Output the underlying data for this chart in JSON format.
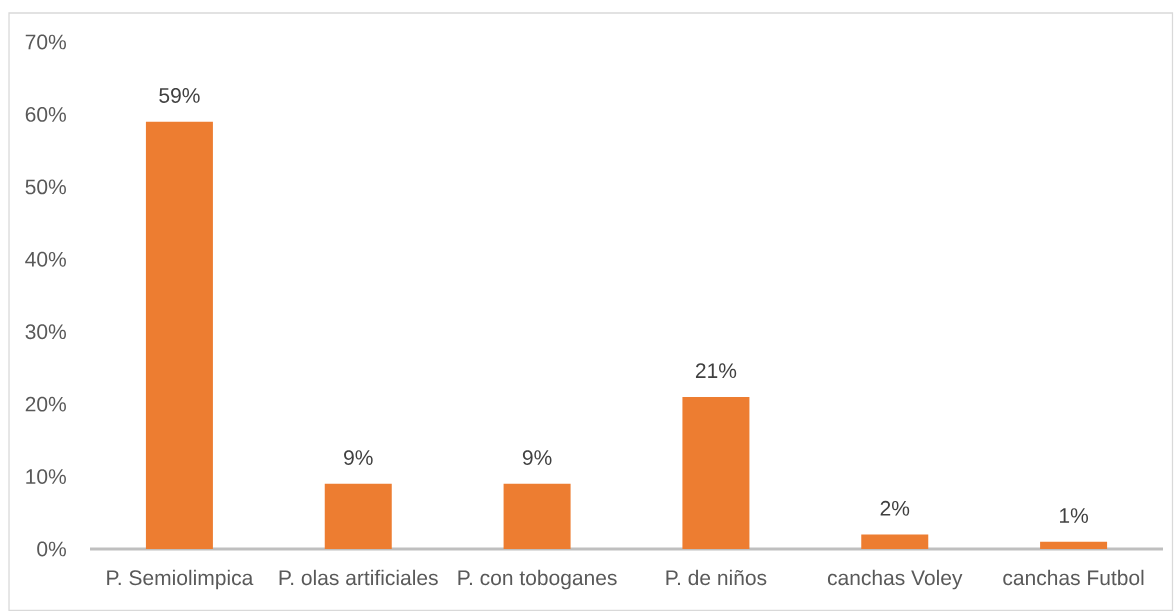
{
  "chart_data": {
    "type": "bar",
    "categories": [
      "P. Semiolimpica",
      "P. olas artificiales",
      "P. con toboganes",
      "P. de niños",
      "canchas Voley",
      "canchas Futbol"
    ],
    "values": [
      59,
      9,
      9,
      21,
      2,
      1
    ],
    "value_labels": [
      "59%",
      "9%",
      "9%",
      "21%",
      "2%",
      "1%"
    ],
    "color": "#ed7d31",
    "ylim": [
      0,
      70
    ],
    "yticks": [
      {
        "value": 0,
        "label": "0%"
      },
      {
        "value": 10,
        "label": "10%"
      },
      {
        "value": 20,
        "label": "20%"
      },
      {
        "value": 30,
        "label": "30%"
      },
      {
        "value": 40,
        "label": "40%"
      },
      {
        "value": 50,
        "label": "50%"
      },
      {
        "value": 60,
        "label": "60%"
      },
      {
        "value": 70,
        "label": "70%"
      }
    ]
  }
}
